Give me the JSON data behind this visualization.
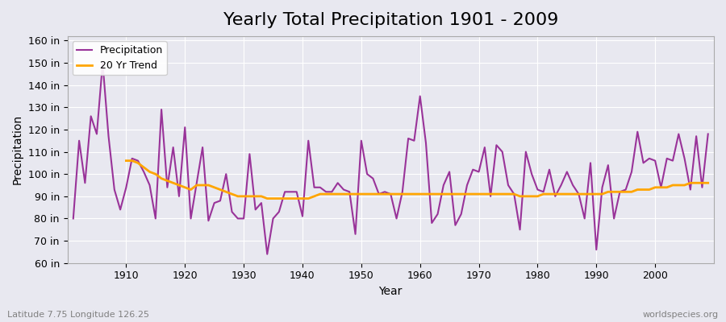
{
  "title": "Yearly Total Precipitation 1901 - 2009",
  "xlabel": "Year",
  "ylabel": "Precipitation",
  "subtitle": "Latitude 7.75 Longitude 126.25",
  "watermark": "worldspecies.org",
  "years": [
    1901,
    1902,
    1903,
    1904,
    1905,
    1906,
    1907,
    1908,
    1909,
    1910,
    1911,
    1912,
    1913,
    1914,
    1915,
    1916,
    1917,
    1918,
    1919,
    1920,
    1921,
    1922,
    1923,
    1924,
    1925,
    1926,
    1927,
    1928,
    1929,
    1930,
    1931,
    1932,
    1933,
    1934,
    1935,
    1936,
    1937,
    1938,
    1939,
    1940,
    1941,
    1942,
    1943,
    1944,
    1945,
    1946,
    1947,
    1948,
    1949,
    1950,
    1951,
    1952,
    1953,
    1954,
    1955,
    1956,
    1957,
    1958,
    1959,
    1960,
    1961,
    1962,
    1963,
    1964,
    1965,
    1966,
    1967,
    1968,
    1969,
    1970,
    1971,
    1972,
    1973,
    1974,
    1975,
    1976,
    1977,
    1978,
    1979,
    1980,
    1981,
    1982,
    1983,
    1984,
    1985,
    1986,
    1987,
    1988,
    1989,
    1990,
    1991,
    1992,
    1993,
    1994,
    1995,
    1996,
    1997,
    1998,
    1999,
    2000,
    2001,
    2002,
    2003,
    2004,
    2005,
    2006,
    2007,
    2008,
    2009
  ],
  "precipitation": [
    80,
    115,
    96,
    126,
    118,
    150,
    117,
    93,
    84,
    94,
    107,
    106,
    101,
    95,
    80,
    129,
    94,
    112,
    90,
    121,
    80,
    96,
    112,
    79,
    87,
    88,
    100,
    83,
    80,
    80,
    109,
    84,
    87,
    64,
    80,
    83,
    92,
    92,
    92,
    81,
    115,
    94,
    94,
    92,
    92,
    96,
    93,
    92,
    73,
    115,
    100,
    98,
    91,
    92,
    91,
    80,
    92,
    116,
    115,
    135,
    114,
    78,
    82,
    95,
    101,
    77,
    82,
    95,
    102,
    101,
    112,
    90,
    113,
    110,
    95,
    91,
    75,
    110,
    100,
    93,
    92,
    102,
    90,
    95,
    101,
    95,
    91,
    80,
    105,
    66,
    94,
    104,
    80,
    92,
    93,
    101,
    119,
    105,
    107,
    106,
    94,
    107,
    106,
    118,
    107,
    93,
    117,
    94,
    118
  ],
  "trend_years": [
    1910,
    1911,
    1912,
    1913,
    1914,
    1915,
    1916,
    1917,
    1918,
    1919,
    1920,
    1921,
    1922,
    1923,
    1924,
    1925,
    1926,
    1927,
    1928,
    1929,
    1930,
    1931,
    1932,
    1933,
    1934,
    1935,
    1936,
    1937,
    1938,
    1939,
    1940,
    1941,
    1942,
    1943,
    1944,
    1945,
    1946,
    1947,
    1948,
    1949,
    1950,
    1951,
    1952,
    1953,
    1954,
    1955,
    1956,
    1957,
    1958,
    1959,
    1960,
    1961,
    1962,
    1963,
    1964,
    1965,
    1966,
    1967,
    1968,
    1969,
    1970,
    1971,
    1972,
    1973,
    1974,
    1975,
    1976,
    1977,
    1978,
    1979,
    1980,
    1981,
    1982,
    1983,
    1984,
    1985,
    1986,
    1987,
    1988,
    1989,
    1990,
    1991,
    1992,
    1993,
    1994,
    1995,
    1996,
    1997,
    1998,
    1999,
    2000,
    2001,
    2002,
    2003,
    2004,
    2005,
    2006,
    2007,
    2008,
    2009
  ],
  "trend": [
    106,
    106,
    105,
    103,
    101,
    100,
    98,
    97,
    96,
    95,
    94,
    93,
    95,
    95,
    95,
    94,
    93,
    92,
    91,
    90,
    90,
    90,
    90,
    90,
    89,
    89,
    89,
    89,
    89,
    89,
    89,
    89,
    90,
    91,
    91,
    91,
    91,
    91,
    91,
    91,
    91,
    91,
    91,
    91,
    91,
    91,
    91,
    91,
    91,
    91,
    91,
    91,
    91,
    91,
    91,
    91,
    91,
    91,
    91,
    91,
    91,
    91,
    91,
    91,
    91,
    91,
    91,
    90,
    90,
    90,
    90,
    91,
    91,
    91,
    91,
    91,
    91,
    91,
    91,
    91,
    91,
    91,
    92,
    92,
    92,
    92,
    92,
    93,
    93,
    93,
    94,
    94,
    94,
    95,
    95,
    95,
    96,
    96,
    96,
    96
  ],
  "precip_color": "#993399",
  "trend_color": "#FFA500",
  "bg_color": "#e8e8f0",
  "plot_bg_color": "#e8e8f0",
  "grid_color": "#ffffff",
  "ylim": [
    60,
    162
  ],
  "yticks": [
    60,
    70,
    80,
    90,
    100,
    110,
    120,
    130,
    140,
    150,
    160
  ],
  "xticks": [
    1910,
    1920,
    1930,
    1940,
    1950,
    1960,
    1970,
    1980,
    1990,
    2000
  ],
  "title_fontsize": 16,
  "label_fontsize": 10,
  "tick_fontsize": 9,
  "legend_fontsize": 9,
  "line_width": 1.5
}
